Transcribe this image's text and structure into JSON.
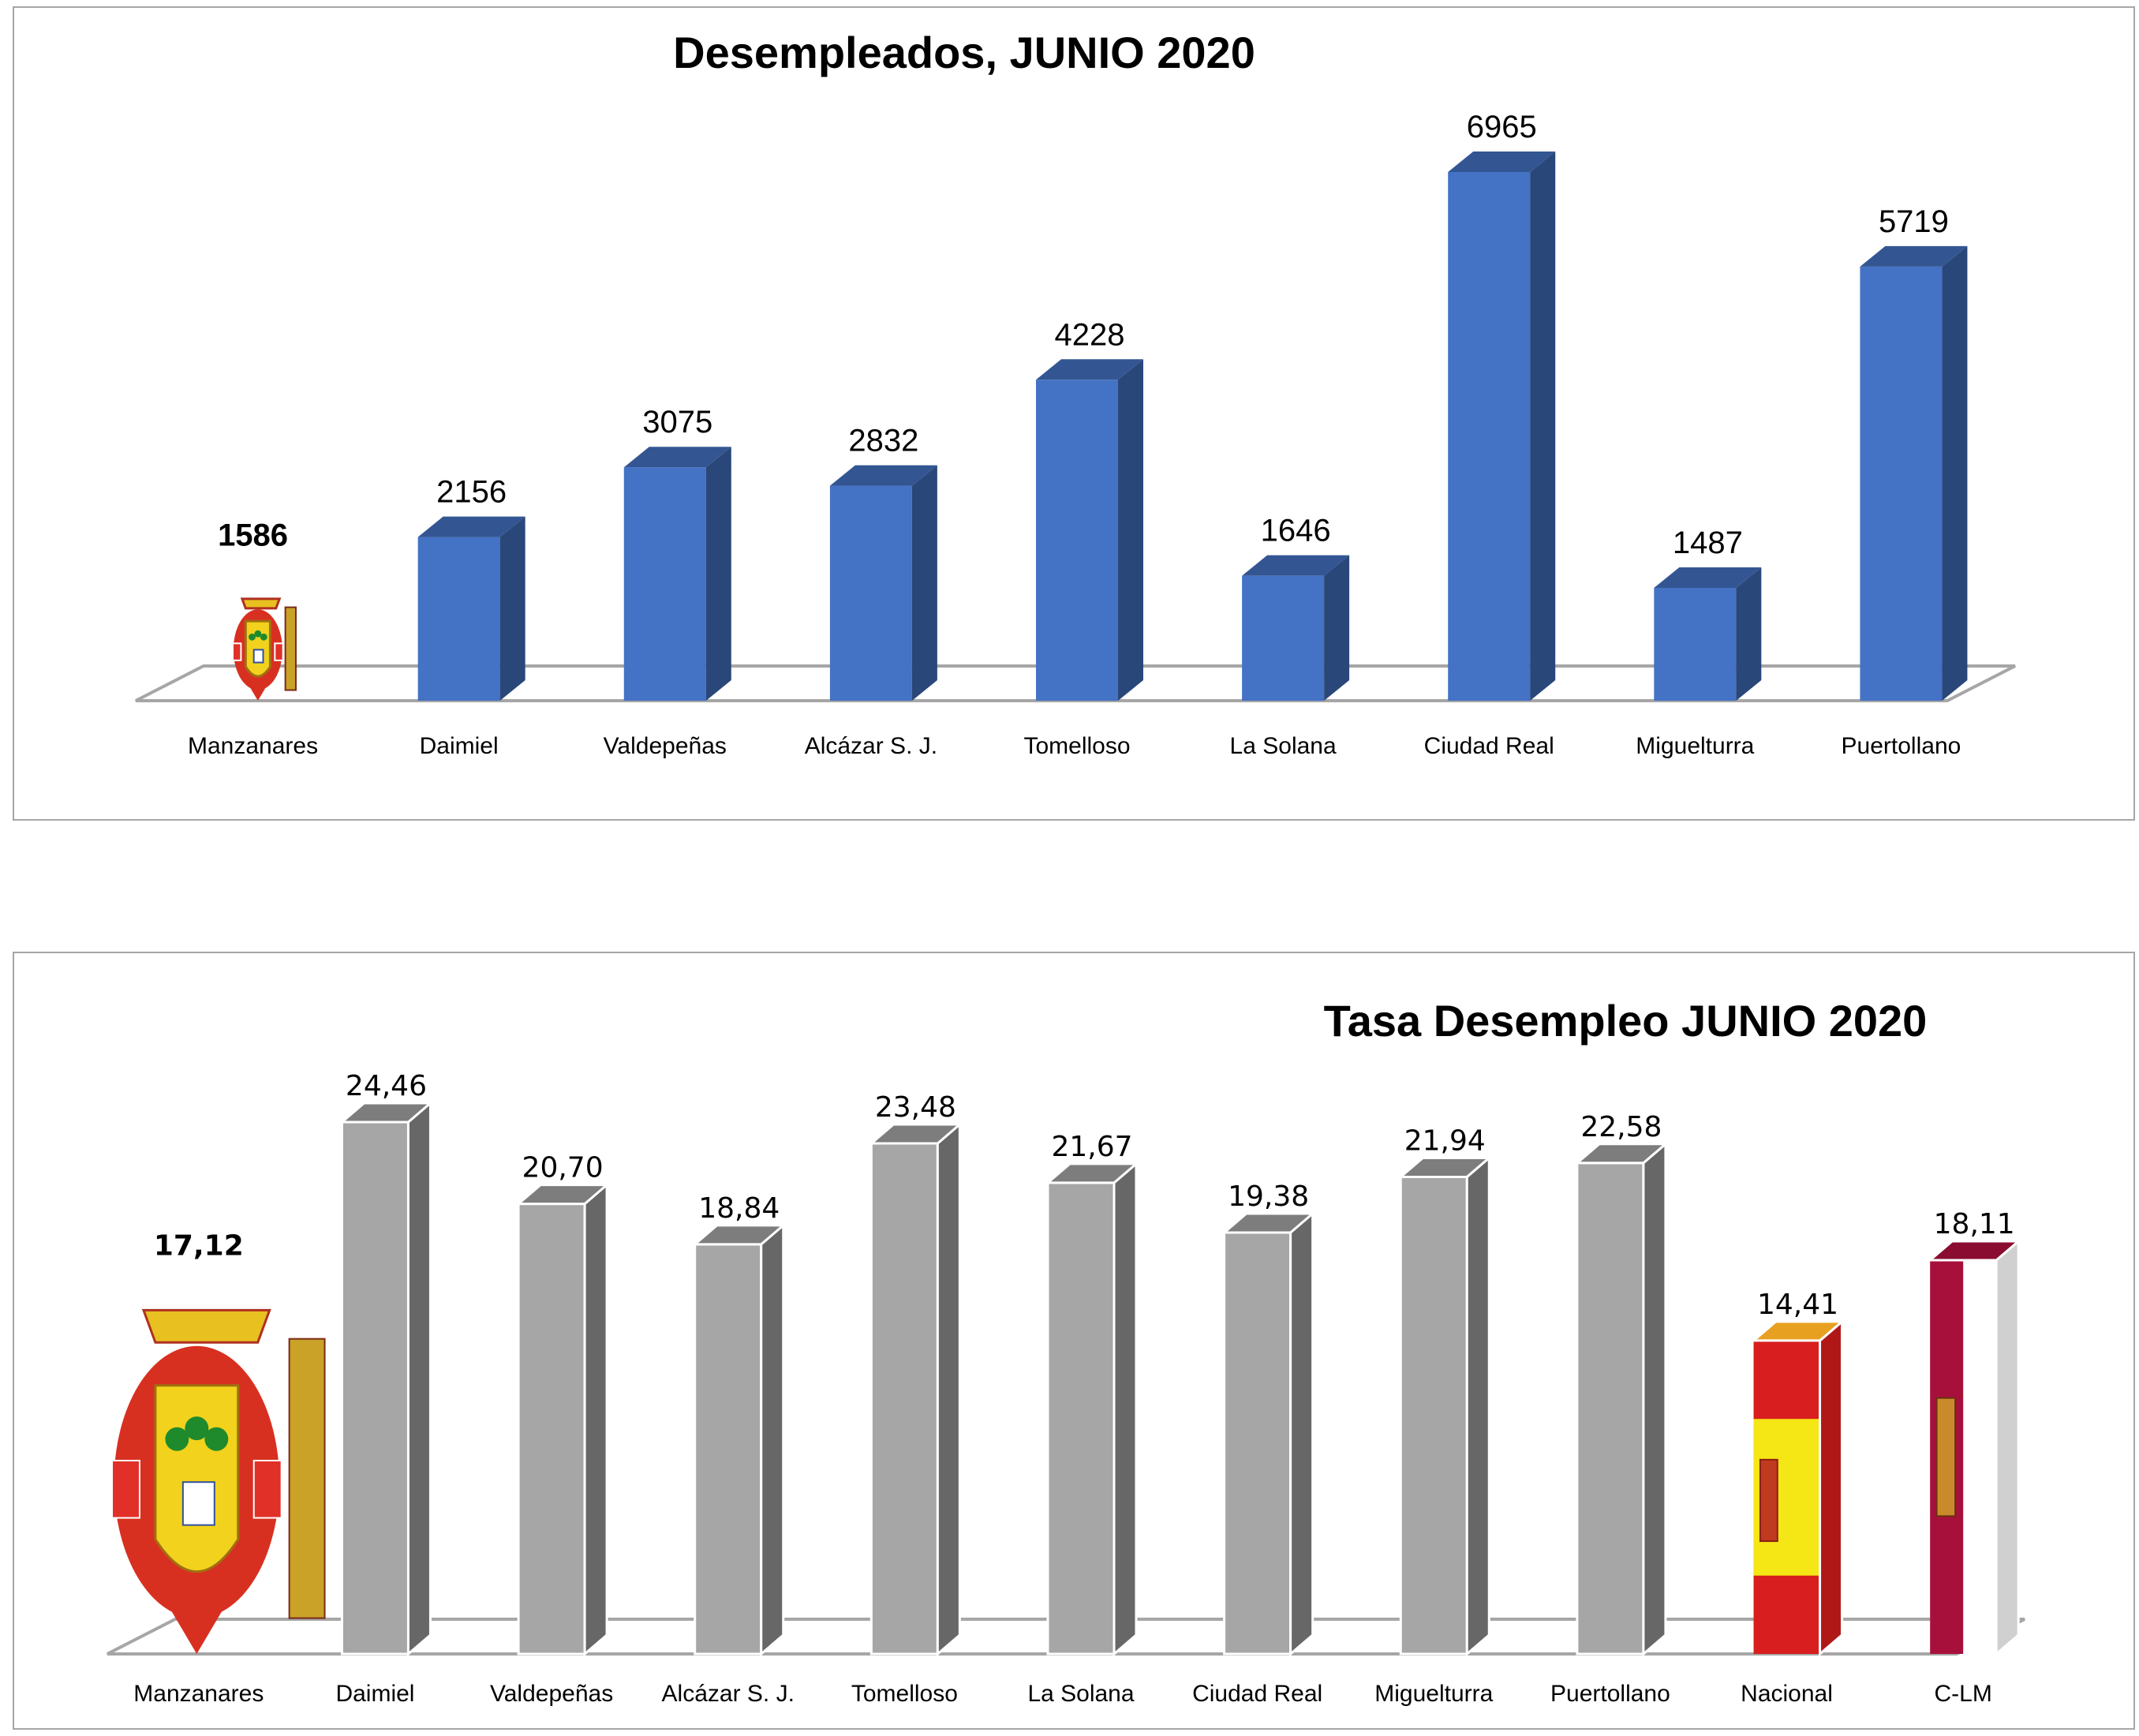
{
  "chart_data": [
    {
      "type": "bar",
      "title": "Desempleados, JUNIO 2020",
      "categories": [
        "Manzanares",
        "Daimiel",
        "Valdepeñas",
        "Alcázar S. J.",
        "Tomelloso",
        "La Solana",
        "Ciudad Real",
        "Miguelturra",
        "Puertollano"
      ],
      "values": [
        1586,
        2156,
        3075,
        2832,
        4228,
        1646,
        6965,
        1487,
        5719
      ],
      "value_labels": [
        "1586",
        "2156",
        "3075",
        "2832",
        "4228",
        "1646",
        "6965",
        "1487",
        "5719"
      ],
      "bar_styles": [
        "coat-of-arms",
        "bar",
        "bar",
        "bar",
        "bar",
        "bar",
        "bar",
        "bar",
        "bar"
      ],
      "highlight_index": 0,
      "style": "3d",
      "color": "#4472c4",
      "grid": false
    },
    {
      "type": "bar",
      "title": "Tasa Desempleo JUNIO 2020",
      "categories": [
        "Manzanares",
        "Daimiel",
        "Valdepeñas",
        "Alcázar S. J.",
        "Tomelloso",
        "La Solana",
        "Ciudad Real",
        "Miguelturra",
        "Puertollano",
        "Nacional",
        "C-LM"
      ],
      "values": [
        17.12,
        24.46,
        20.7,
        18.84,
        23.48,
        21.67,
        19.38,
        21.94,
        22.58,
        14.41,
        18.11
      ],
      "value_labels": [
        "17,12",
        "24,46",
        "20,70",
        "18,84",
        "23,48",
        "21,67",
        "19,38",
        "21,94",
        "22,58",
        "14,41",
        "18,11"
      ],
      "bar_styles": [
        "coat-of-arms",
        "bar",
        "bar",
        "bar",
        "bar",
        "bar",
        "bar",
        "bar",
        "bar",
        "flag-spain",
        "flag-clm"
      ],
      "highlight_index": 0,
      "style": "3d",
      "color": "#a6a6a6",
      "grid": false
    }
  ]
}
